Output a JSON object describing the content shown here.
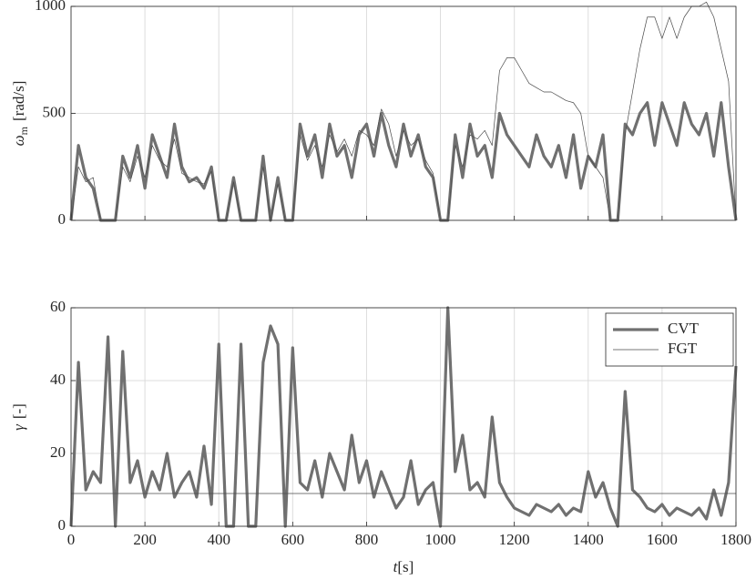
{
  "chart_data": [
    {
      "type": "line",
      "ylabel_symbol": "ω",
      "ylabel_subscript": "m",
      "ylabel_unit": "[rad/s]",
      "show_xtick_labels": false,
      "x": [
        0,
        20,
        40,
        60,
        80,
        100,
        120,
        140,
        160,
        180,
        200,
        220,
        240,
        260,
        280,
        300,
        320,
        340,
        360,
        380,
        400,
        420,
        440,
        460,
        480,
        500,
        520,
        540,
        560,
        580,
        600,
        620,
        640,
        660,
        680,
        700,
        720,
        740,
        760,
        780,
        800,
        820,
        840,
        860,
        880,
        900,
        920,
        940,
        960,
        980,
        1000,
        1020,
        1040,
        1060,
        1080,
        1100,
        1120,
        1140,
        1160,
        1180,
        1200,
        1220,
        1240,
        1260,
        1280,
        1300,
        1320,
        1340,
        1360,
        1380,
        1400,
        1420,
        1440,
        1460,
        1480,
        1500,
        1520,
        1540,
        1560,
        1580,
        1600,
        1620,
        1640,
        1660,
        1680,
        1700,
        1720,
        1740,
        1760,
        1780,
        1800
      ],
      "xlim": [
        0,
        1800
      ],
      "xticks": [
        0,
        200,
        400,
        600,
        800,
        1000,
        1200,
        1400,
        1600,
        1800
      ],
      "ylim": [
        0,
        1000
      ],
      "yticks": [
        0,
        500,
        1000
      ],
      "grid": true,
      "series": [
        {
          "name": "CVT",
          "color": "#707070",
          "width": 3.2,
          "values": [
            0,
            350,
            200,
            150,
            0,
            0,
            0,
            300,
            200,
            350,
            150,
            400,
            300,
            200,
            450,
            250,
            180,
            200,
            150,
            250,
            0,
            0,
            200,
            0,
            0,
            0,
            300,
            0,
            200,
            0,
            0,
            450,
            300,
            400,
            200,
            450,
            300,
            350,
            200,
            400,
            450,
            300,
            500,
            350,
            250,
            450,
            300,
            400,
            250,
            200,
            0,
            0,
            400,
            200,
            450,
            300,
            350,
            200,
            500,
            400,
            350,
            300,
            250,
            400,
            300,
            250,
            350,
            200,
            400,
            150,
            300,
            250,
            400,
            0,
            0,
            450,
            400,
            500,
            550,
            350,
            550,
            450,
            350,
            550,
            450,
            400,
            500,
            300,
            550,
            250,
            0
          ]
        },
        {
          "name": "FGT",
          "color": "#4a4a4a",
          "width": 0.7,
          "values": [
            0,
            250,
            180,
            200,
            0,
            0,
            0,
            250,
            180,
            300,
            200,
            350,
            280,
            250,
            380,
            220,
            200,
            180,
            170,
            230,
            0,
            0,
            180,
            0,
            0,
            0,
            250,
            0,
            170,
            0,
            0,
            400,
            280,
            350,
            250,
            400,
            320,
            380,
            300,
            420,
            400,
            350,
            520,
            450,
            300,
            420,
            350,
            380,
            280,
            220,
            0,
            0,
            350,
            250,
            400,
            380,
            420,
            350,
            700,
            760,
            760,
            700,
            640,
            620,
            600,
            600,
            580,
            560,
            550,
            500,
            300,
            250,
            200,
            0,
            0,
            400,
            600,
            800,
            950,
            950,
            850,
            950,
            850,
            950,
            1000,
            1000,
            1020,
            950,
            800,
            650,
            0
          ]
        }
      ]
    },
    {
      "type": "line",
      "ylabel_symbol": "γ",
      "ylabel_unit": "[-]",
      "xlabel_symbol": "t",
      "xlabel_unit": "[s]",
      "show_xtick_labels": true,
      "legend": "top-right",
      "x": [
        0,
        20,
        40,
        60,
        80,
        100,
        120,
        140,
        160,
        180,
        200,
        220,
        240,
        260,
        280,
        300,
        320,
        340,
        360,
        380,
        400,
        420,
        440,
        460,
        480,
        500,
        520,
        540,
        560,
        580,
        600,
        620,
        640,
        660,
        680,
        700,
        720,
        740,
        760,
        780,
        800,
        820,
        840,
        860,
        880,
        900,
        920,
        940,
        960,
        980,
        1000,
        1020,
        1040,
        1060,
        1080,
        1100,
        1120,
        1140,
        1160,
        1180,
        1200,
        1220,
        1240,
        1260,
        1280,
        1300,
        1320,
        1340,
        1360,
        1380,
        1400,
        1420,
        1440,
        1460,
        1480,
        1500,
        1520,
        1540,
        1560,
        1580,
        1600,
        1620,
        1640,
        1660,
        1680,
        1700,
        1720,
        1740,
        1760,
        1780,
        1800
      ],
      "xlim": [
        0,
        1800
      ],
      "xticks": [
        0,
        200,
        400,
        600,
        800,
        1000,
        1200,
        1400,
        1600,
        1800
      ],
      "ylim": [
        0,
        60
      ],
      "yticks": [
        0,
        20,
        40,
        60
      ],
      "grid": true,
      "series": [
        {
          "name": "CVT",
          "color": "#707070",
          "width": 3.2,
          "values": [
            0,
            45,
            10,
            15,
            12,
            52,
            0,
            48,
            12,
            18,
            8,
            15,
            10,
            20,
            8,
            12,
            15,
            8,
            22,
            6,
            50,
            0,
            0,
            50,
            0,
            0,
            45,
            55,
            50,
            0,
            49,
            12,
            10,
            18,
            8,
            20,
            15,
            10,
            25,
            12,
            18,
            8,
            15,
            10,
            5,
            8,
            18,
            6,
            10,
            12,
            0,
            60,
            15,
            25,
            10,
            12,
            8,
            30,
            12,
            8,
            5,
            4,
            3,
            6,
            5,
            4,
            6,
            3,
            5,
            4,
            15,
            8,
            12,
            5,
            0,
            37,
            10,
            8,
            5,
            4,
            6,
            3,
            5,
            4,
            3,
            5,
            2,
            10,
            3,
            12,
            44
          ]
        },
        {
          "name": "FGT",
          "color": "#4a4a4a",
          "width": 0.7,
          "values": [
            9,
            9,
            9,
            9,
            9,
            9,
            9,
            9,
            9,
            9,
            9,
            9,
            9,
            9,
            9,
            9,
            9,
            9,
            9,
            9,
            9,
            9,
            9,
            9,
            9,
            9,
            9,
            9,
            9,
            9,
            9,
            9,
            9,
            9,
            9,
            9,
            9,
            9,
            9,
            9,
            9,
            9,
            9,
            9,
            9,
            9,
            9,
            9,
            9,
            9,
            9,
            9,
            9,
            9,
            9,
            9,
            9,
            9,
            9,
            9,
            9,
            9,
            9,
            9,
            9,
            9,
            9,
            9,
            9,
            9,
            9,
            9,
            9,
            9,
            9,
            9,
            9,
            9,
            9,
            9,
            9,
            9,
            9,
            9,
            9,
            9,
            9,
            9,
            9,
            9,
            9
          ]
        }
      ]
    }
  ]
}
